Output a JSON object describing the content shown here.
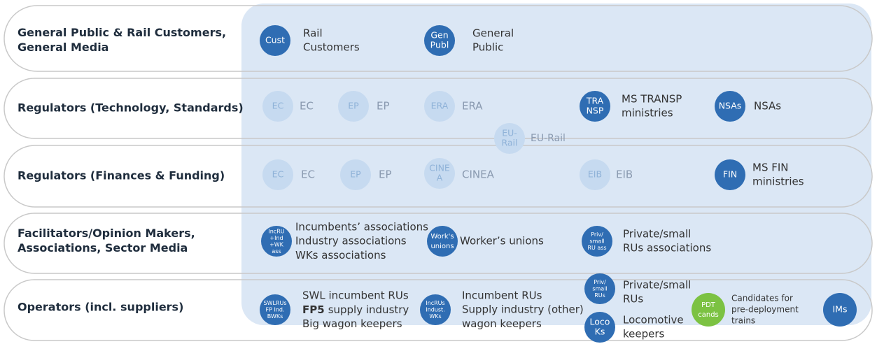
{
  "rows": [
    {
      "label": [
        "General Public & Rail Customers,",
        "General Media"
      ],
      "items": [
        {
          "circle": [
            "Cust"
          ],
          "text": [
            "Rail",
            "Customers"
          ]
        },
        {
          "circle": [
            "Gen",
            "Publ"
          ],
          "text": [
            "General",
            "Public"
          ]
        }
      ]
    },
    {
      "label": [
        "Regulators (Technology, Standards)"
      ],
      "items": [
        {
          "circle": [
            "EC"
          ],
          "text": [
            "EC"
          ]
        },
        {
          "circle": [
            "EP"
          ],
          "text": [
            "EP"
          ]
        },
        {
          "circle": [
            "ERA"
          ],
          "text": [
            "ERA"
          ]
        },
        {
          "circle": [
            "EU-",
            "Rail"
          ],
          "text": [
            "EU-Rail"
          ]
        },
        {
          "circle": [
            "TRA",
            "NSP"
          ],
          "text": [
            "MS TRANSP",
            "ministries"
          ]
        },
        {
          "circle": [
            "NSAs"
          ],
          "text": [
            "NSAs"
          ]
        }
      ]
    },
    {
      "label": [
        "Regulators (Finances & Funding)"
      ],
      "items": [
        {
          "circle": [
            "EC"
          ],
          "text": [
            "EC"
          ]
        },
        {
          "circle": [
            "EP"
          ],
          "text": [
            "EP"
          ]
        },
        {
          "circle": [
            "CINE",
            "A"
          ],
          "text": [
            "CINEA"
          ]
        },
        {
          "circle": [
            "EIB"
          ],
          "text": [
            "EIB"
          ]
        },
        {
          "circle": [
            "FIN"
          ],
          "text": [
            "MS FIN",
            "ministries"
          ]
        }
      ]
    },
    {
      "label": [
        "Facilitators/Opinion Makers,",
        "Associations, Sector Media"
      ],
      "items": [
        {
          "circle": [
            "IncRU",
            "+Ind",
            "+WK",
            "ass"
          ],
          "text": [
            "Incumbents’ associations",
            "Industry associations",
            "WKs associations"
          ]
        },
        {
          "circle": [
            "Work's",
            "unions"
          ],
          "text": [
            "Worker’s unions"
          ]
        },
        {
          "circle": [
            "Priv/",
            "small",
            "RU ass"
          ],
          "text": [
            "Private/small",
            "RUs associations"
          ]
        }
      ]
    },
    {
      "label": [
        "Operators (incl. suppliers)"
      ],
      "items": [
        {
          "circle": [
            "SWLRUs",
            "FP Ind.",
            "BWKs"
          ],
          "text": [
            "SWL incumbent RUs",
            {
              "bold": "FP5",
              "rest": "supply industry"
            },
            "Big wagon keepers"
          ]
        },
        {
          "circle": [
            "IncRUs",
            "Indust.",
            "WKs"
          ],
          "text": [
            "Incumbent RUs",
            "Supply industry (other)",
            "wagon keepers"
          ]
        },
        {
          "circle": [
            "Priv/",
            "small",
            "RUs"
          ],
          "text": [
            "Private/small",
            "RUs"
          ]
        },
        {
          "circle": [
            "Loco",
            "Ks"
          ],
          "text": [
            "Locomotive",
            "keepers"
          ]
        },
        {
          "circle": [
            "PDT",
            "cands"
          ],
          "text": [
            "Candidates for",
            "pre-deployment",
            "trains"
          ]
        },
        {
          "circle": [
            "IMs"
          ],
          "text": []
        }
      ]
    }
  ]
}
